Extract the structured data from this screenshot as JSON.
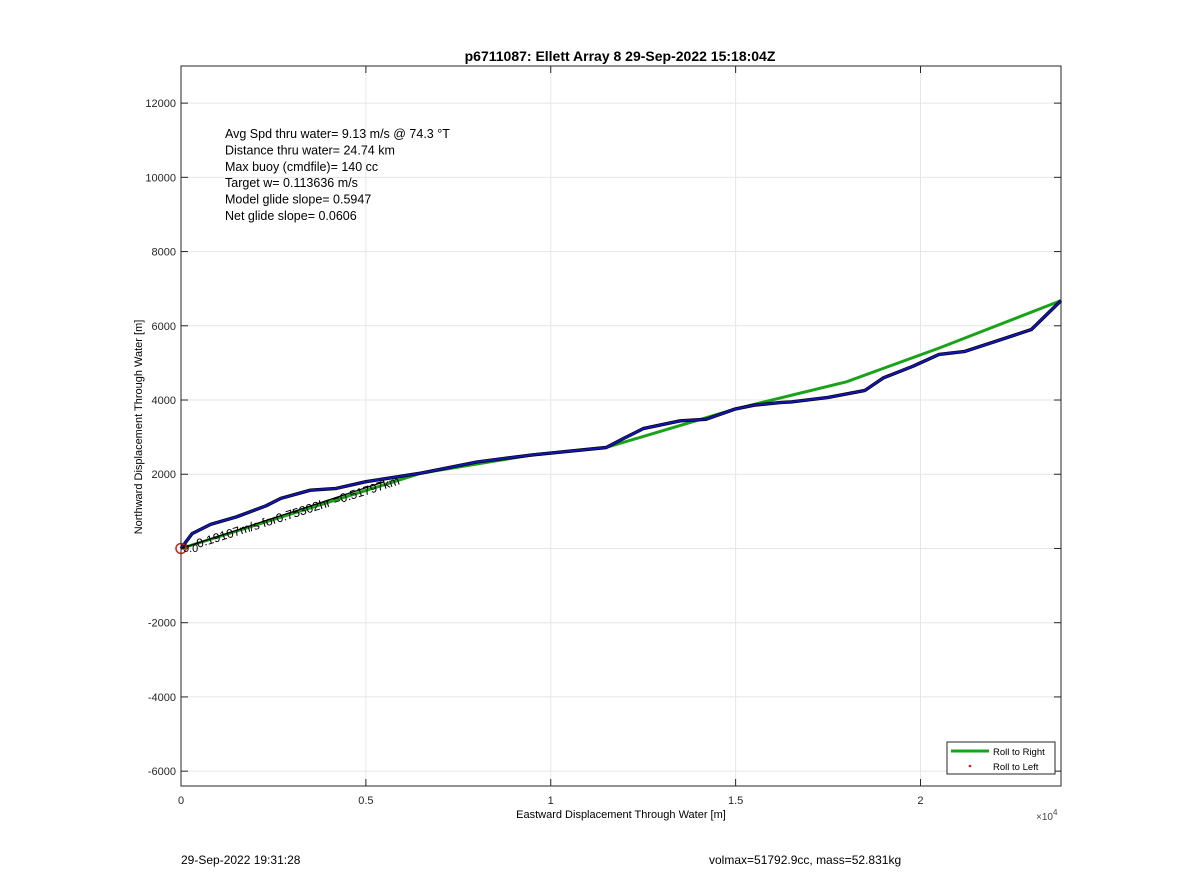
{
  "chart_data": {
    "type": "line",
    "title": "p6711087: Ellett Array 8 29-Sep-2022 15:18:04Z",
    "xlabel": "Eastward Displacement Through Water [m]",
    "ylabel": "Northward Displacement Through Water [m]",
    "x_exponent_label": "×10",
    "x_exponent_power": "4",
    "xlim": [
      0,
      23800
    ],
    "ylim": [
      -6400,
      13000
    ],
    "x_ticks": [
      0,
      5000,
      10000,
      15000,
      20000
    ],
    "x_tick_labels": [
      "0",
      "0.5",
      "1",
      "1.5",
      "2"
    ],
    "y_ticks": [
      -6000,
      -4000,
      -2000,
      0,
      2000,
      4000,
      6000,
      8000,
      10000,
      12000
    ],
    "y_tick_labels": [
      "-6000",
      "-4000",
      "-2000",
      "",
      "2000",
      "4000",
      "6000",
      "8000",
      "10000",
      "12000"
    ],
    "grid": true,
    "legend_position": "bottom-right",
    "series": [
      {
        "name": "Roll to Right",
        "color": "#1aa31a",
        "style": "line",
        "x": [
          0,
          6500,
          9500,
          11500,
          15000,
          18000,
          20500,
          23800
        ],
        "y": [
          0,
          2030,
          2520,
          2720,
          3760,
          4490,
          5400,
          6680
        ]
      },
      {
        "name": "Roll to Left",
        "color": "#e01a1a",
        "style": "dot",
        "x": [],
        "y": []
      },
      {
        "color": "#000000",
        "style": "line",
        "x": [
          0,
          300,
          800,
          1500,
          2300,
          2700,
          3500,
          4200,
          5000,
          6500,
          8000,
          9500,
          11500,
          12000,
          12500,
          13500,
          14200,
          15000,
          15500,
          16200,
          16500,
          17500,
          18500,
          19000,
          19800,
          20500,
          21200,
          22000,
          23000,
          23800
        ],
        "y": [
          0,
          400,
          650,
          850,
          1150,
          1350,
          1570,
          1620,
          1800,
          2030,
          2330,
          2520,
          2720,
          2980,
          3230,
          3440,
          3480,
          3760,
          3860,
          3930,
          3950,
          4070,
          4260,
          4600,
          4910,
          5230,
          5310,
          5570,
          5900,
          6680
        ]
      },
      {
        "color": "#1414a8",
        "style": "line",
        "x": [
          0,
          300,
          800,
          1500,
          2300,
          2700,
          3500,
          4200,
          5000,
          6500,
          8000,
          9500,
          11500,
          12000,
          12500,
          13500,
          14200,
          15000,
          15500,
          16200,
          16500,
          17500,
          18500,
          19000,
          19800,
          20500,
          21200,
          22000,
          23000,
          23800
        ],
        "y": [
          0,
          400,
          650,
          850,
          1150,
          1350,
          1570,
          1620,
          1800,
          2030,
          2330,
          2520,
          2720,
          2980,
          3230,
          3440,
          3480,
          3760,
          3860,
          3930,
          3950,
          4070,
          4260,
          4600,
          4910,
          5230,
          5310,
          5570,
          5900,
          6680
        ]
      }
    ],
    "surface_arrow": {
      "x1": 0,
      "y1": 0,
      "x2": 5500,
      "y2": 1800
    },
    "annotation_lines": [
      "Avg Spd thru water=  9.13 m/s @  74.3 °T",
      "Distance thru water= 24.74 km",
      "Max buoy (cmdfile)= 140 cc",
      "Target w= 0.113636 m/s",
      "Model glide slope= 0.5947",
      "Net glide slope= 0.0606"
    ],
    "surface_drift_label": "0.19107m/s for0.75302hr =0.51797km",
    "surface_drift_prefix": "0.0"
  },
  "footer": {
    "timestamp": "29-Sep-2022 19:31:28",
    "stats": "volmax=51792.9cc, mass=52.831kg"
  }
}
